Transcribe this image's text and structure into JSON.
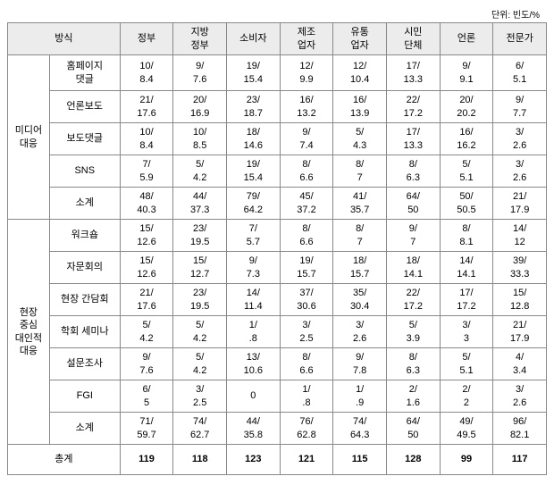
{
  "unit": "단위: 빈도/%",
  "headers": {
    "method": "방식",
    "cols": [
      "정부",
      "지방\n정부",
      "소비자",
      "제조\n업자",
      "유통\n업자",
      "시민\n단체",
      "언론",
      "전문가"
    ]
  },
  "cat1": {
    "label": "미디어\n대응",
    "rows": [
      {
        "label": "홈페이지\n댓글",
        "v": [
          "10/\n8.4",
          "9/\n7.6",
          "19/\n15.4",
          "12/\n9.9",
          "12/\n10.4",
          "17/\n13.3",
          "9/\n9.1",
          "6/\n5.1"
        ]
      },
      {
        "label": "언론보도",
        "v": [
          "21/\n17.6",
          "20/\n16.9",
          "23/\n18.7",
          "16/\n13.2",
          "16/\n13.9",
          "22/\n17.2",
          "20/\n20.2",
          "9/\n7.7"
        ]
      },
      {
        "label": "보도댓글",
        "v": [
          "10/\n8.4",
          "10/\n8.5",
          "18/\n14.6",
          "9/\n7.4",
          "5/\n4.3",
          "17/\n13.3",
          "16/\n16.2",
          "3/\n2.6"
        ]
      },
      {
        "label": "SNS",
        "v": [
          "7/\n5.9",
          "5/\n4.2",
          "19/\n15.4",
          "8/\n6.6",
          "8/\n7",
          "8/\n6.3",
          "5/\n5.1",
          "3/\n2.6"
        ]
      },
      {
        "label": "소계",
        "v": [
          "48/\n40.3",
          "44/\n37.3",
          "79/\n64.2",
          "45/\n37.2",
          "41/\n35.7",
          "64/\n50",
          "50/\n50.5",
          "21/\n17.9"
        ]
      }
    ]
  },
  "cat2": {
    "label": "현장\n중심\n대인적\n대응",
    "rows": [
      {
        "label": "워크숍",
        "v": [
          "15/\n12.6",
          "23/\n19.5",
          "7/\n5.7",
          "8/\n6.6",
          "8/\n7",
          "9/\n7",
          "8/\n8.1",
          "14/\n12"
        ]
      },
      {
        "label": "자문회의",
        "v": [
          "15/\n12.6",
          "15/\n12.7",
          "9/\n7.3",
          "19/\n15.7",
          "18/\n15.7",
          "18/\n14.1",
          "14/\n14.1",
          "39/\n33.3"
        ]
      },
      {
        "label": "현장 간담회",
        "v": [
          "21/\n17.6",
          "23/\n19.5",
          "14/\n11.4",
          "37/\n30.6",
          "35/\n30.4",
          "22/\n17.2",
          "17/\n17.2",
          "15/\n12.8"
        ]
      },
      {
        "label": "학회 세미나",
        "v": [
          "5/\n4.2",
          "5/\n4.2",
          "1/\n.8",
          "3/\n2.5",
          "3/\n2.6",
          "5/\n3.9",
          "3/\n3",
          "21/\n17.9"
        ]
      },
      {
        "label": "설문조사",
        "v": [
          "9/\n7.6",
          "5/\n4.2",
          "13/\n10.6",
          "8/\n6.6",
          "9/\n7.8",
          "8/\n6.3",
          "5/\n5.1",
          "4/\n3.4"
        ]
      },
      {
        "label": "FGI",
        "v": [
          "6/\n5",
          "3/\n2.5",
          "0",
          "1/\n.8",
          "1/\n.9",
          "2/\n1.6",
          "2/\n2",
          "3/\n2.6"
        ]
      },
      {
        "label": "소계",
        "v": [
          "71/\n59.7",
          "74/\n62.7",
          "44/\n35.8",
          "76/\n62.8",
          "74/\n64.3",
          "64/\n50",
          "49/\n49.5",
          "96/\n82.1"
        ]
      }
    ]
  },
  "total": {
    "label": "총계",
    "v": [
      "119",
      "118",
      "123",
      "121",
      "115",
      "128",
      "99",
      "117"
    ]
  }
}
